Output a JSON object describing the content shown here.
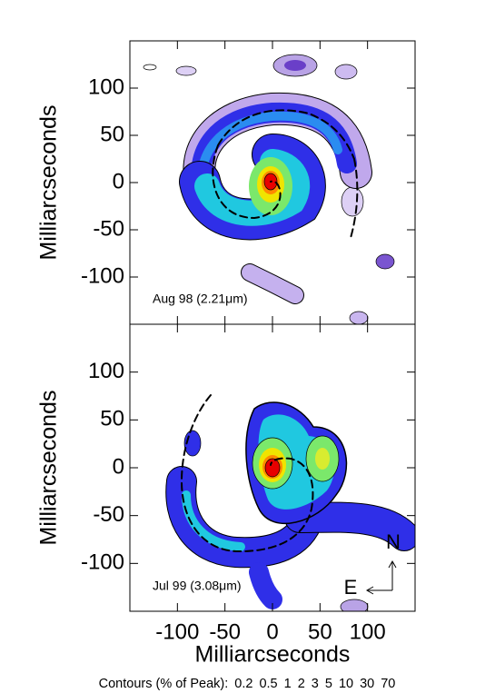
{
  "chart_data": [
    {
      "type": "contour",
      "ylabel": "Milliarcseconds",
      "label": "Aug 98 (2.21μm)",
      "xlim": [
        -150,
        150
      ],
      "ylim": [
        -150,
        150
      ],
      "xticks": [
        -100,
        -50,
        0,
        50,
        100
      ],
      "yticks": [
        -100,
        -50,
        0,
        50,
        100
      ]
    },
    {
      "type": "contour",
      "ylabel": "Milliarcseconds",
      "xlabel": "Milliarcseconds",
      "label": "Jul 99 (3.08μm)",
      "xlim": [
        -150,
        150
      ],
      "ylim": [
        -150,
        150
      ],
      "xticks": [
        -100,
        -50,
        0,
        50,
        100
      ],
      "yticks": [
        -100,
        -50,
        0,
        50,
        100
      ],
      "compass": {
        "north": "N",
        "east": "E"
      }
    }
  ],
  "contours": {
    "label": "Contours (% of Peak):",
    "levels": [
      0.2,
      0.5,
      1,
      2,
      3,
      5,
      10,
      30,
      70
    ]
  }
}
